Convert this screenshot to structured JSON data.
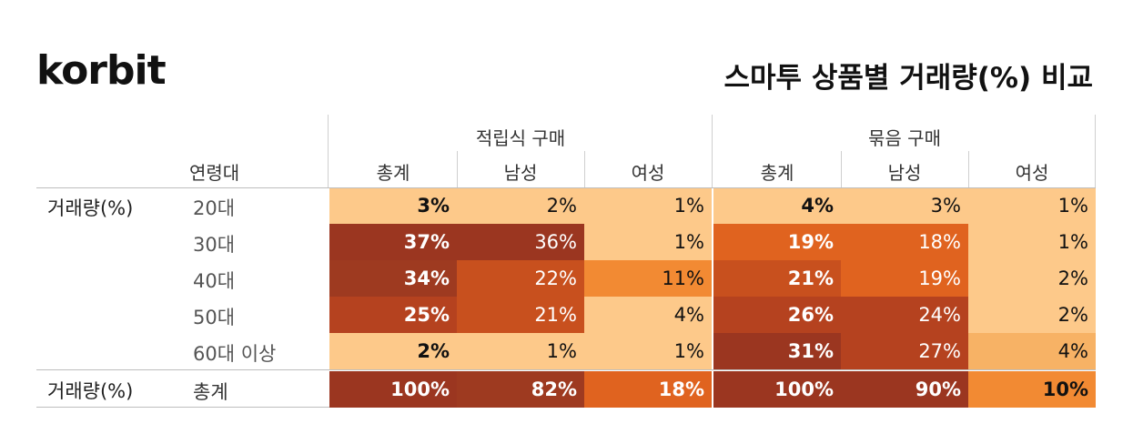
{
  "brand": {
    "logo": "korbit"
  },
  "header": {
    "title": "스마투 상품별 거래량(%) 비교"
  },
  "chart_data": {
    "type": "table",
    "groups": [
      "적립식 구매",
      "묶음 구매"
    ],
    "sub_columns": [
      "총계",
      "남성",
      "여성"
    ],
    "age_header": "연령대",
    "row_group_label": "거래량(%)",
    "rows": [
      {
        "label": "20대",
        "values": [
          "3%",
          "2%",
          "1%",
          "4%",
          "3%",
          "1%"
        ]
      },
      {
        "label": "30대",
        "values": [
          "37%",
          "36%",
          "1%",
          "19%",
          "18%",
          "1%"
        ]
      },
      {
        "label": "40대",
        "values": [
          "34%",
          "22%",
          "11%",
          "21%",
          "19%",
          "2%"
        ]
      },
      {
        "label": "50대",
        "values": [
          "25%",
          "21%",
          "4%",
          "26%",
          "24%",
          "2%"
        ]
      },
      {
        "label": "60대 이상",
        "values": [
          "2%",
          "1%",
          "1%",
          "31%",
          "27%",
          "4%"
        ]
      }
    ],
    "total_row": {
      "group_label": "거래량(%)",
      "label": "총계",
      "values": [
        "100%",
        "82%",
        "18%",
        "100%",
        "90%",
        "10%"
      ]
    },
    "heat_colors": [
      "#fdc98a",
      "#f7a757",
      "#f28a33",
      "#e0631f",
      "#c8501e",
      "#b5421f",
      "#9b3620"
    ],
    "cell_colors": [
      [
        "#fdc98a",
        "#fdc98a",
        "#fdc98a",
        "#fdc98a",
        "#fdc98a",
        "#fdc98a"
      ],
      [
        "#9b3620",
        "#9b3620",
        "#fdc98a",
        "#e0631f",
        "#e0631f",
        "#fdc98a"
      ],
      [
        "#9e3a20",
        "#c8501e",
        "#f28a33",
        "#c8501e",
        "#e0631f",
        "#fdc98a"
      ],
      [
        "#b5421f",
        "#c8501e",
        "#fdc98a",
        "#b5421f",
        "#b5421f",
        "#fdc98a"
      ],
      [
        "#fdc98a",
        "#fdc98a",
        "#fdc98a",
        "#9b3620",
        "#b5421f",
        "#f7b265"
      ]
    ],
    "total_colors": [
      "#9b3620",
      "#9e3a20",
      "#e0631f",
      "#9b3620",
      "#9b3620",
      "#f28a33"
    ]
  }
}
